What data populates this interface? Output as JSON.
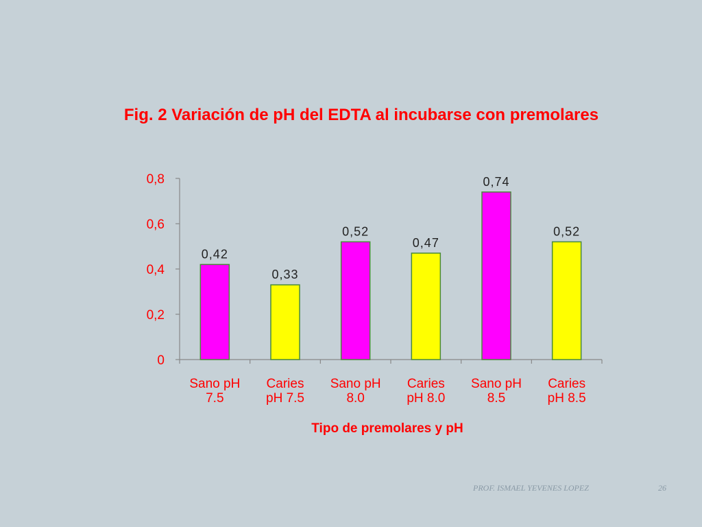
{
  "slide": {
    "footer_author": "PROF. ISMAEL YEVENES LOPEZ",
    "page_number": "26"
  },
  "chart_data": {
    "type": "bar",
    "title": "Fig. 2 Variación de pH del EDTA al incubarse con premolares",
    "xlabel": "Tipo de premolares  y pH",
    "ylabel": "",
    "ylim": [
      0,
      0.8
    ],
    "yticks": [
      {
        "value": 0,
        "label": "0"
      },
      {
        "value": 0.2,
        "label": "0,2"
      },
      {
        "value": 0.4,
        "label": "0,4"
      },
      {
        "value": 0.6,
        "label": "0,6"
      },
      {
        "value": 0.8,
        "label": "0,8"
      }
    ],
    "categories": [
      [
        "Sano pH",
        "7.5"
      ],
      [
        "Caries",
        "pH 7.5"
      ],
      [
        "Sano pH",
        "8.0"
      ],
      [
        "Caries",
        "pH 8.0"
      ],
      [
        "Sano pH",
        "8.5"
      ],
      [
        "Caries",
        "pH 8.5"
      ]
    ],
    "values": [
      0.42,
      0.33,
      0.52,
      0.47,
      0.74,
      0.52
    ],
    "value_labels": [
      "0,42",
      "0,33",
      "0,52",
      "0,47",
      "0,74",
      "0,52"
    ],
    "bar_colors": [
      "#ff00ff",
      "#ffff00",
      "#ff00ff",
      "#ffff00",
      "#ff00ff",
      "#ffff00"
    ],
    "bar_border_color": "#4a8a3a",
    "tick_label_color": "#ff0000",
    "value_label_color": "#222222",
    "grid": false,
    "legend": "none"
  }
}
